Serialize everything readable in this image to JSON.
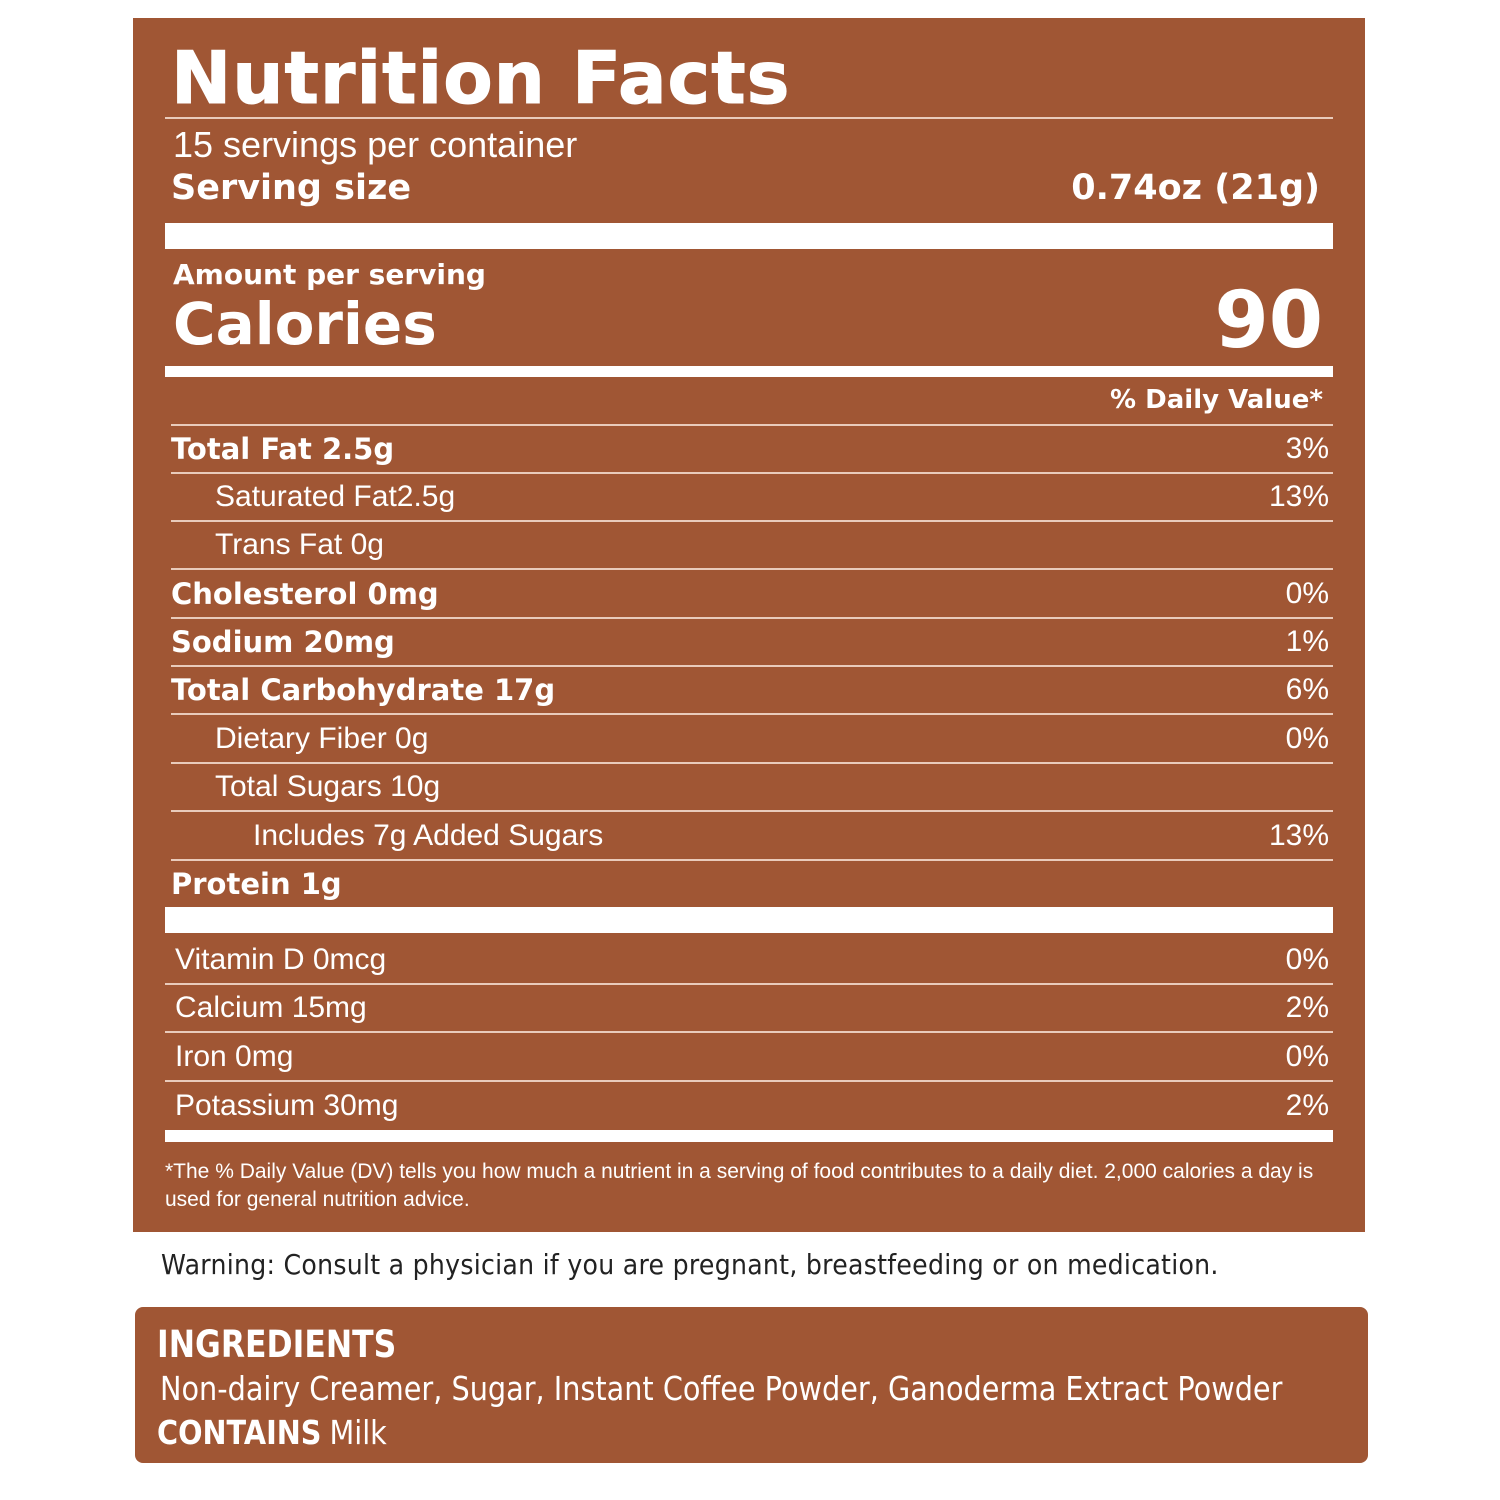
{
  "label": {
    "title": "Nutrition Facts",
    "servings_per_container": "15 servings per container",
    "serving_size_label": "Serving size",
    "serving_size_value": "0.74oz (21g)",
    "amount_per_serving": "Amount per serving",
    "calories_label": "Calories",
    "calories_value": "90",
    "daily_value_header": "% Daily Value*",
    "nutrients": [
      {
        "name": "Total Fat 2.5g",
        "dv": "3%"
      },
      {
        "name": "Saturated Fat2.5g",
        "dv": "13%"
      },
      {
        "name": "Trans Fat 0g",
        "dv": ""
      },
      {
        "name": "Cholesterol 0mg",
        "dv": "0%"
      },
      {
        "name": "Sodium 20mg",
        "dv": "1%"
      },
      {
        "name": "Total Carbohydrate 17g",
        "dv": "6%"
      },
      {
        "name": "Dietary Fiber 0g",
        "dv": "0%"
      },
      {
        "name": "Total Sugars 10g",
        "dv": ""
      },
      {
        "name": "Includes 7g Added Sugars",
        "dv": "13%"
      },
      {
        "name": "Protein 1g",
        "dv": ""
      }
    ],
    "vitamins": [
      {
        "name": "Vitamin D 0mcg",
        "dv": "0%"
      },
      {
        "name": "Calcium 15mg",
        "dv": "2%"
      },
      {
        "name": "Iron 0mg",
        "dv": "0%"
      },
      {
        "name": "Potassium 30mg",
        "dv": "2%"
      }
    ],
    "footnote": "*The % Daily Value (DV) tells you how much a nutrient in a serving of food contributes to a daily diet. 2,000 calories a day is used for general nutrition advice."
  },
  "warning": "Warning: Consult a physician if you are pregnant, breastfeeding or on medication.",
  "ingredients": {
    "title": "INGREDIENTS",
    "list": "Non-dairy Creamer, Sugar, Instant Coffee Powder, Ganoderma Extract Powder",
    "contains_label": "CONTAINS",
    "contains_value": "Milk"
  },
  "colors": {
    "panel": "#A05634",
    "text": "#FFFFFF"
  }
}
